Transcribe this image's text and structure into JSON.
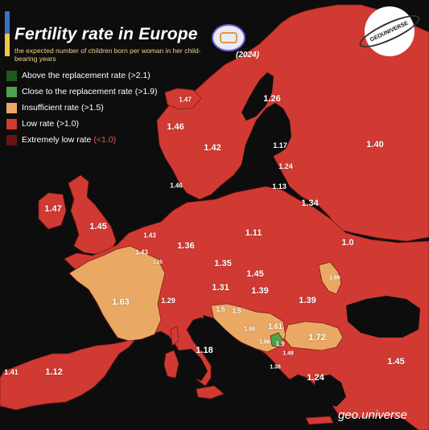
{
  "header": {
    "title": "Fertility rate in Europe",
    "subtitle": "the expected number of children born per woman in her child-bearing years",
    "year": "(2024)",
    "accent_colors": [
      "#3a72c9",
      "#f2c744"
    ]
  },
  "logo": {
    "text": "GEOUNIVERSE"
  },
  "credit": "geo.universe",
  "legend": [
    {
      "label": "Above the replacement rate",
      "threshold": "(>2.1)",
      "color": "#1d5c1d",
      "threshold_color": "#ffffff"
    },
    {
      "label": "Close to the replacement rate",
      "threshold": "(>1.9)",
      "color": "#4da34a",
      "threshold_color": "#ffffff"
    },
    {
      "label": "Insufficient rate",
      "threshold": "(>1.5)",
      "color": "#e9a964",
      "threshold_color": "#ffffff"
    },
    {
      "label": "Low rate",
      "threshold": "(>1.0)",
      "color": "#d13a33",
      "threshold_color": "#ffffff"
    },
    {
      "label": "Extremely low rate",
      "threshold": "(<1.0)",
      "color": "#6b1313",
      "threshold_color": "#e06060"
    }
  ],
  "colors": {
    "sea": "#0d0d0d",
    "low": "#d13a33",
    "insufficient": "#e9a964",
    "close": "#4da34a",
    "border": "#7a1c18"
  },
  "labels": [
    {
      "id": "iceland-rate",
      "text": "1.47"
    },
    {
      "id": "ireland-rate",
      "text": "1.47"
    },
    {
      "id": "uk-rate",
      "text": "1.45"
    },
    {
      "id": "norway-rate",
      "text": "1.46"
    },
    {
      "id": "sweden-rate",
      "text": "1.42"
    },
    {
      "id": "finland-rate",
      "text": "1.26"
    },
    {
      "id": "russia-rate",
      "text": "1.40"
    },
    {
      "id": "estonia-rate",
      "text": "1.17"
    },
    {
      "id": "latvia-rate",
      "text": "1.24"
    },
    {
      "id": "lithuania-rate",
      "text": "1.13"
    },
    {
      "id": "denmark-rate",
      "text": "1.46"
    },
    {
      "id": "belarus-rate",
      "text": "1.34"
    },
    {
      "id": "netherlands-rate",
      "text": "1.43"
    },
    {
      "id": "belgium-rate",
      "text": "1.43"
    },
    {
      "id": "luxembourg-rate",
      "text": "1.25"
    },
    {
      "id": "germany-rate",
      "text": "1.36"
    },
    {
      "id": "poland-rate",
      "text": "1.11"
    },
    {
      "id": "ukraine-rate",
      "text": "1.0"
    },
    {
      "id": "czechia-rate",
      "text": "1.35"
    },
    {
      "id": "slovakia-rate",
      "text": "1.45"
    },
    {
      "id": "austria-rate",
      "text": "1.31"
    },
    {
      "id": "hungary-rate",
      "text": "1.39"
    },
    {
      "id": "romania-rate",
      "text": "1.39"
    },
    {
      "id": "moldova-rate",
      "text": "1.66"
    },
    {
      "id": "switzerland-rate",
      "text": "1.29"
    },
    {
      "id": "france-rate",
      "text": "1.63"
    },
    {
      "id": "slovenia-rate",
      "text": "1.5"
    },
    {
      "id": "croatia-rate",
      "text": "1.5"
    },
    {
      "id": "bosnia-rate",
      "text": "1.58"
    },
    {
      "id": "serbia-rate",
      "text": "1.61"
    },
    {
      "id": "montenegro-rate",
      "text": "1.66"
    },
    {
      "id": "kosovo-rate",
      "text": "1.9"
    },
    {
      "id": "north-macedonia-rate",
      "text": "1.48"
    },
    {
      "id": "albania-rate",
      "text": "1.38"
    },
    {
      "id": "bulgaria-rate",
      "text": "1.72"
    },
    {
      "id": "italy-rate",
      "text": "1.18"
    },
    {
      "id": "greece-rate",
      "text": "1.24"
    },
    {
      "id": "turkey-rate",
      "text": "1.45"
    },
    {
      "id": "spain-rate",
      "text": "1.12"
    },
    {
      "id": "portugal-rate",
      "text": "1.41"
    }
  ]
}
